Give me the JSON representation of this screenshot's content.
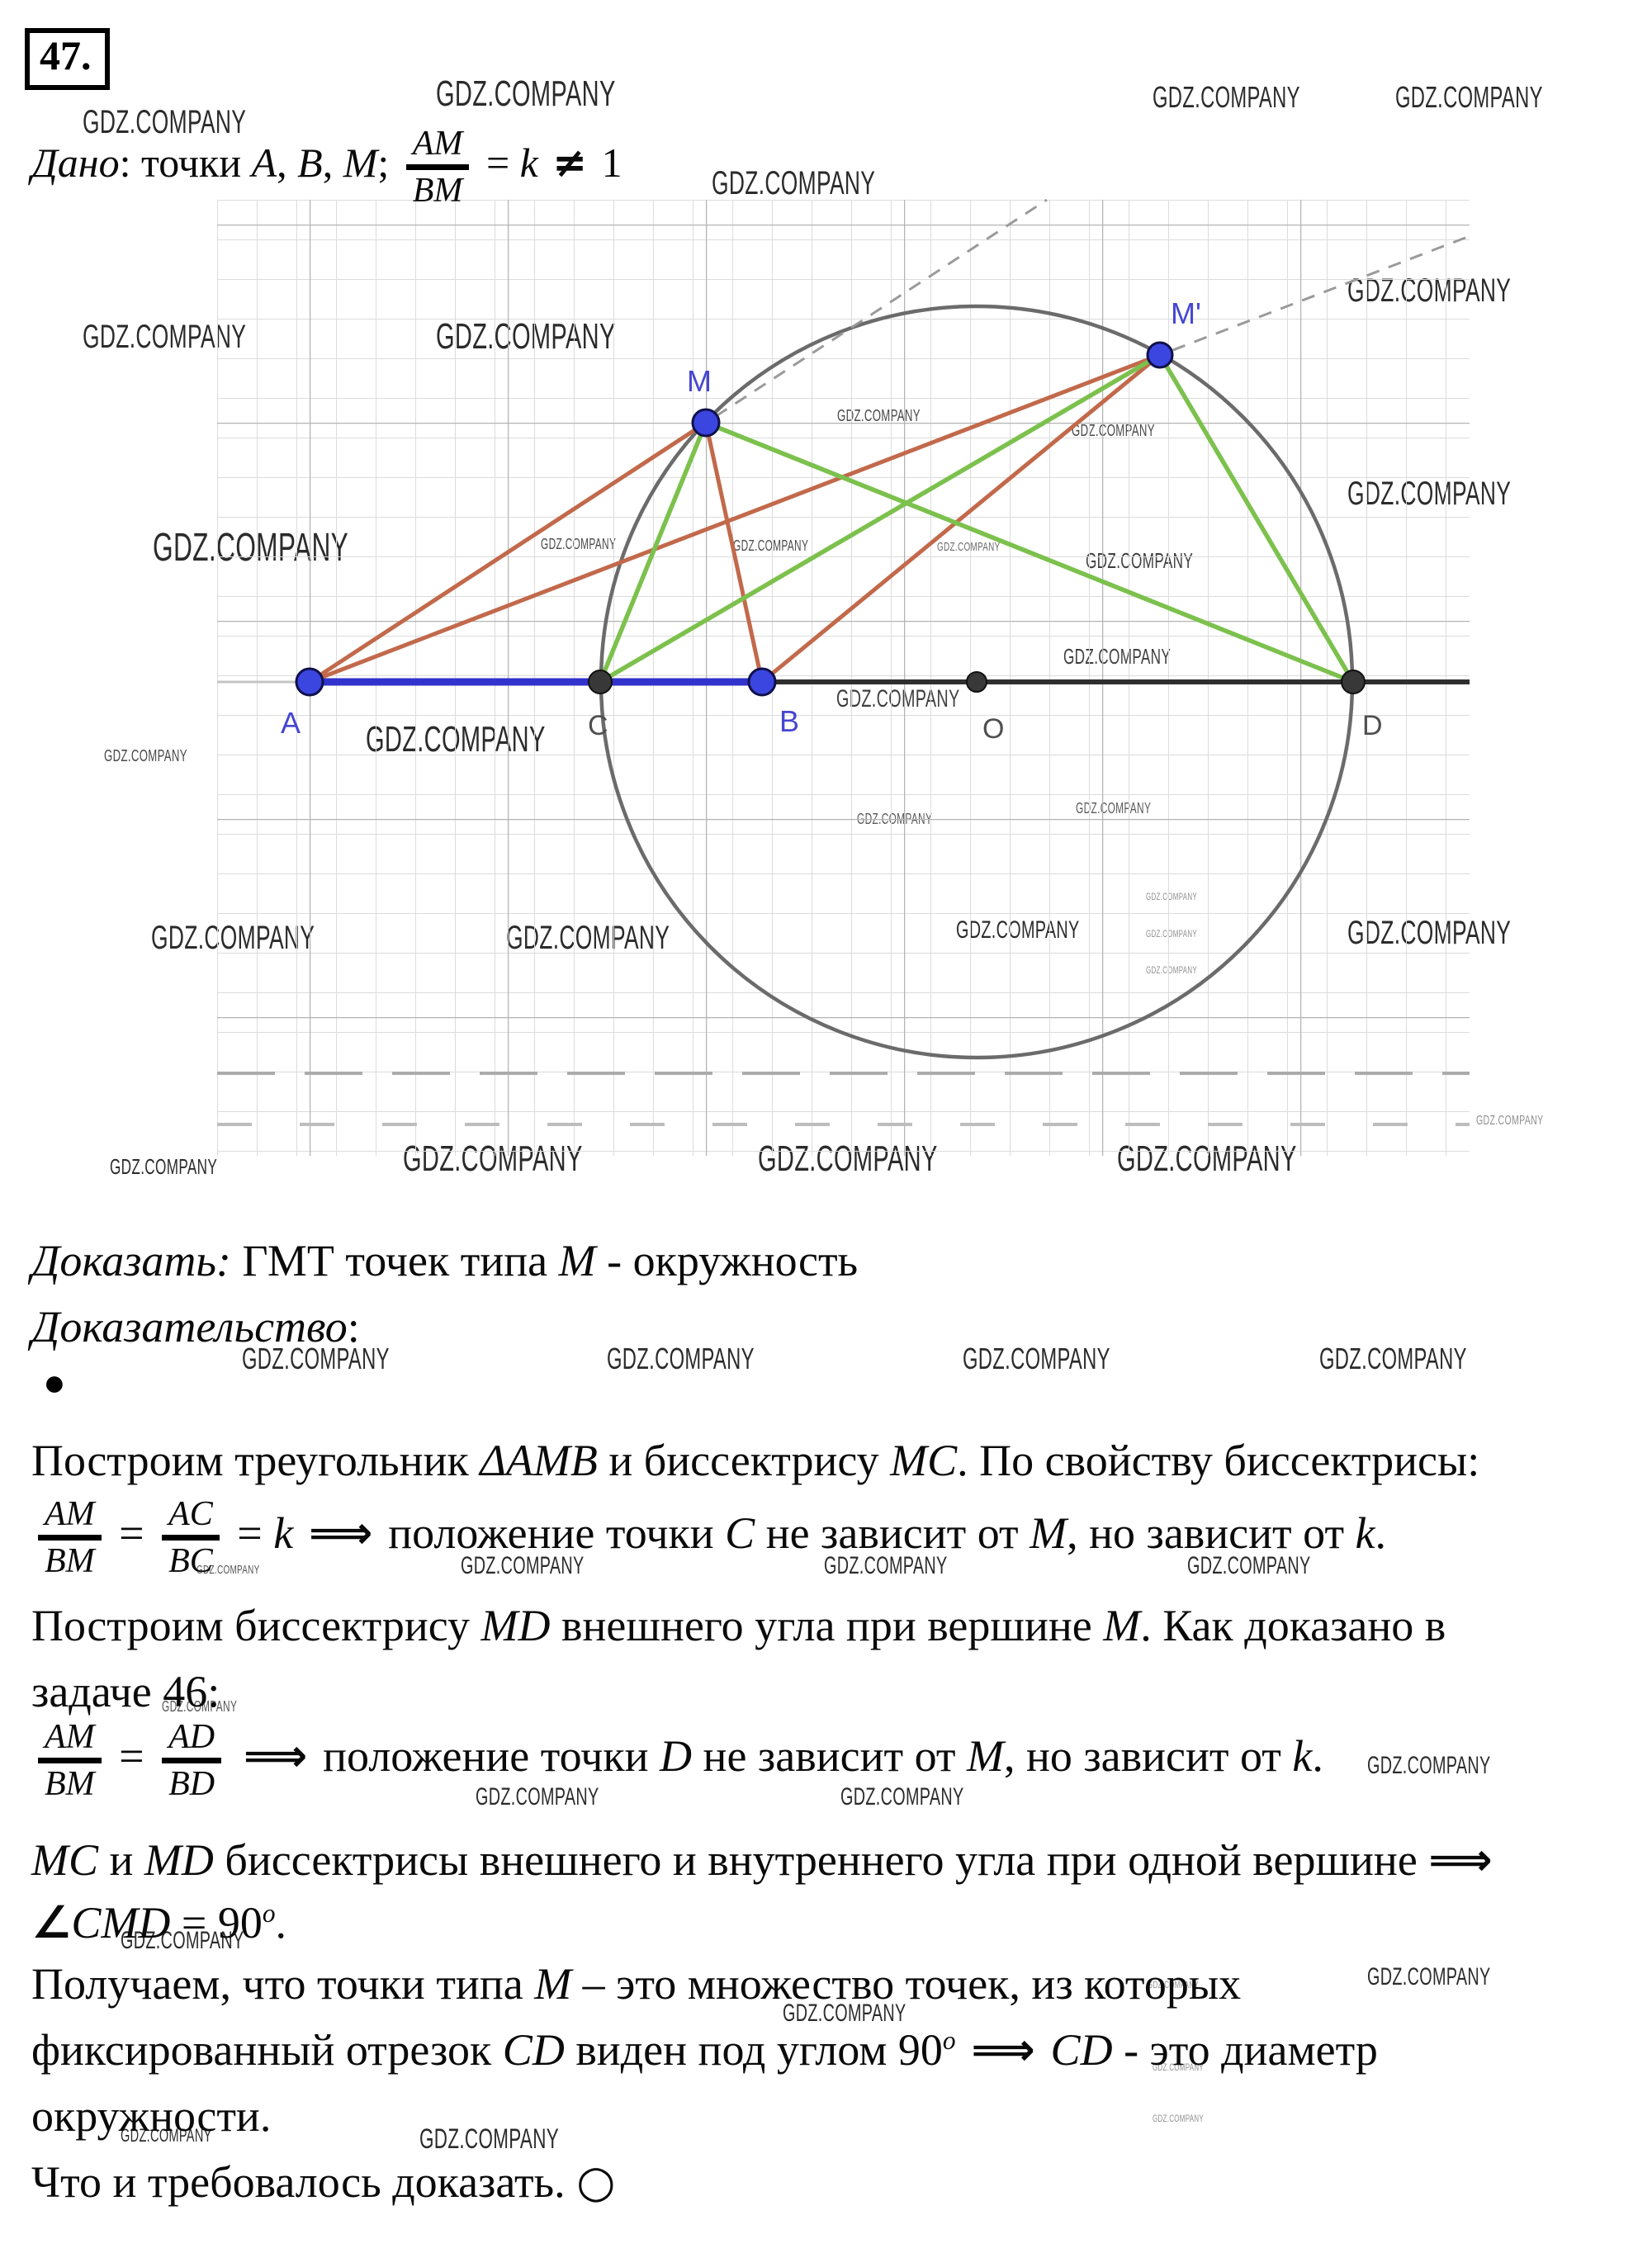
{
  "problem": {
    "number": "47."
  },
  "bullet": "●",
  "watermarks": {
    "text": "GDZ.COMPANY",
    "items": [
      [
        100,
        128,
        40
      ],
      [
        528,
        92,
        44
      ],
      [
        1396,
        100,
        36
      ],
      [
        1690,
        100,
        36
      ],
      [
        862,
        202,
        40
      ],
      [
        100,
        388,
        40
      ],
      [
        528,
        386,
        44
      ],
      [
        1632,
        332,
        40
      ],
      [
        185,
        640,
        48
      ],
      [
        1632,
        578,
        40
      ],
      [
        1014,
        494,
        20,
        "#4a4a4a"
      ],
      [
        1298,
        512,
        20,
        "#4a4a4a"
      ],
      [
        655,
        650,
        18,
        "#4a4a4a"
      ],
      [
        888,
        652,
        18,
        "#4a4a4a"
      ],
      [
        1135,
        655,
        15,
        "#6a6a6a"
      ],
      [
        1315,
        666,
        26,
        "#3f3f3f"
      ],
      [
        1288,
        782,
        26,
        "#3f3f3f"
      ],
      [
        1013,
        832,
        30,
        "#3f3f3f"
      ],
      [
        443,
        874,
        44
      ],
      [
        126,
        906,
        20,
        "#4a4a4a"
      ],
      [
        1038,
        983,
        18,
        "#5a5a5a"
      ],
      [
        1303,
        970,
        18,
        "#5a5a5a"
      ],
      [
        1388,
        1080,
        12,
        "#8f8f8f"
      ],
      [
        1388,
        1125,
        12,
        "#8f8f8f"
      ],
      [
        1388,
        1169,
        12,
        "#8f8f8f"
      ],
      [
        183,
        1116,
        40
      ],
      [
        613,
        1116,
        40
      ],
      [
        1158,
        1112,
        30
      ],
      [
        1632,
        1110,
        40
      ],
      [
        1788,
        1350,
        16,
        "#8f8f8f"
      ],
      [
        133,
        1400,
        26
      ],
      [
        488,
        1382,
        44
      ],
      [
        918,
        1382,
        44
      ],
      [
        1353,
        1382,
        44
      ],
      [
        293,
        1628,
        36
      ],
      [
        735,
        1628,
        36
      ],
      [
        1166,
        1628,
        36
      ],
      [
        1598,
        1628,
        36
      ],
      [
        238,
        1894,
        15,
        "#555555"
      ],
      [
        558,
        1882,
        30
      ],
      [
        998,
        1882,
        30
      ],
      [
        1438,
        1882,
        30
      ],
      [
        196,
        2058,
        18,
        "#555555"
      ],
      [
        1656,
        2124,
        30
      ],
      [
        576,
        2162,
        30
      ],
      [
        1018,
        2162,
        30
      ],
      [
        146,
        2336,
        30
      ],
      [
        1656,
        2380,
        30
      ],
      [
        1390,
        2398,
        12,
        "#8f8f8f"
      ],
      [
        948,
        2424,
        30
      ],
      [
        1396,
        2498,
        12,
        "#8f8f8f"
      ],
      [
        1396,
        2560,
        12,
        "#8f8f8f"
      ],
      [
        146,
        2576,
        22
      ],
      [
        508,
        2574,
        34
      ]
    ]
  },
  "diagram": {
    "point_labels": {
      "a": "A",
      "b": "B",
      "c": "C",
      "o": "O",
      "d": "D",
      "m": "M",
      "m_prime": "M'"
    },
    "colors": {
      "side_orange": "#c2694b",
      "bisector_green": "#7cc14d",
      "segment_blue": "#3232cd",
      "point_blue": "#3b45e0",
      "point_dark": "#383838",
      "circle_gray": "#6b6b6b",
      "axis_dark": "#2f2f2f",
      "dashed_gray": "#9a9a9a",
      "label_blue": "#4646d2",
      "label_gray": "#4f4f4f"
    }
  },
  "given": {
    "parts": [
      {
        "s": "i",
        "t": "Дано"
      },
      {
        "s": "r",
        "t": ": точки "
      },
      {
        "s": "i",
        "t": "A"
      },
      {
        "s": "r",
        "t": ", "
      },
      {
        "s": "i",
        "t": "B"
      },
      {
        "s": "r",
        "t": ", "
      },
      {
        "s": "i",
        "t": "M"
      },
      {
        "s": "r",
        "t": ";  "
      },
      {
        "s": "frac",
        "num": "AM",
        "den": "BM"
      },
      {
        "s": "r",
        "t": " = "
      },
      {
        "s": "i",
        "t": "k"
      },
      {
        "s": "sym",
        "t": " ≠ "
      },
      {
        "s": "r",
        "t": "1"
      }
    ]
  },
  "prove": {
    "parts": [
      {
        "s": "i",
        "t": "Доказать:"
      },
      {
        "s": "r",
        "t": " ГМТ точек типа "
      },
      {
        "s": "i",
        "t": "M"
      },
      {
        "s": "r",
        "t": " - окружность"
      }
    ]
  },
  "proof_label": {
    "parts": [
      {
        "s": "i",
        "t": "Доказательство"
      },
      {
        "s": "r",
        "t": ":"
      }
    ]
  },
  "steps": {
    "s1": {
      "parts": [
        {
          "s": "r",
          "t": "Построим треугольник "
        },
        {
          "s": "i",
          "t": "ΔAMB"
        },
        {
          "s": "r",
          "t": " и биссектрису "
        },
        {
          "s": "i",
          "t": "MC"
        },
        {
          "s": "r",
          "t": ". По свойству биссектрисы:"
        }
      ]
    },
    "s2": {
      "parts": [
        {
          "s": "frac",
          "num": "AM",
          "den": "BM"
        },
        {
          "s": "r",
          "t": " = "
        },
        {
          "s": "frac",
          "num": "AC",
          "den": "BC"
        },
        {
          "s": "r",
          "t": " = "
        },
        {
          "s": "i",
          "t": "k"
        },
        {
          "s": "sym",
          "t": " ⟹ "
        },
        {
          "s": "r",
          "t": "положение точки "
        },
        {
          "s": "i",
          "t": "C"
        },
        {
          "s": "r",
          "t": " не зависит от "
        },
        {
          "s": "i",
          "t": "M"
        },
        {
          "s": "r",
          "t": ", но зависит от "
        },
        {
          "s": "i",
          "t": "k"
        },
        {
          "s": "r",
          "t": "."
        }
      ]
    },
    "s3": {
      "parts": [
        {
          "s": "r",
          "t": "Построим биссектрису "
        },
        {
          "s": "i",
          "t": "MD"
        },
        {
          "s": "r",
          "t": " внешнего угла при вершине "
        },
        {
          "s": "i",
          "t": "M"
        },
        {
          "s": "r",
          "t": ". Как доказано в"
        }
      ]
    },
    "s3b": {
      "parts": [
        {
          "s": "r",
          "t": "задаче 46:"
        }
      ]
    },
    "s4": {
      "parts": [
        {
          "s": "frac",
          "num": "AM",
          "den": "BM"
        },
        {
          "s": "r",
          "t": " = "
        },
        {
          "s": "frac",
          "num": "AD",
          "den": "BD"
        },
        {
          "s": "sym",
          "t": " ⟹ "
        },
        {
          "s": "r",
          "t": "положение точки "
        },
        {
          "s": "i",
          "t": "D"
        },
        {
          "s": "r",
          "t": " не зависит от "
        },
        {
          "s": "i",
          "t": "M"
        },
        {
          "s": "r",
          "t": ", но зависит от "
        },
        {
          "s": "i",
          "t": "k"
        },
        {
          "s": "r",
          "t": "."
        }
      ]
    },
    "s5": {
      "parts": [
        {
          "s": "i",
          "t": "MC"
        },
        {
          "s": "r",
          "t": " и "
        },
        {
          "s": "i",
          "t": "MD"
        },
        {
          "s": "r",
          "t": " биссектрисы внешнего и внутреннего угла при одной вершине "
        },
        {
          "s": "sym",
          "t": "⟹"
        }
      ]
    },
    "s5b": {
      "parts": [
        {
          "s": "sym",
          "t": "∠"
        },
        {
          "s": "i",
          "t": "CMD"
        },
        {
          "s": "r",
          "t": " = 90"
        },
        {
          "s": "sup",
          "t": "o"
        },
        {
          "s": "r",
          "t": "."
        }
      ]
    },
    "s6": {
      "parts": [
        {
          "s": "r",
          "t": "Получаем, что точки типа "
        },
        {
          "s": "i",
          "t": "M"
        },
        {
          "s": "r",
          "t": " – это множество точек, из которых"
        }
      ]
    },
    "s6b": {
      "parts": [
        {
          "s": "r",
          "t": "фиксированный отрезок "
        },
        {
          "s": "i",
          "t": "CD"
        },
        {
          "s": "r",
          "t": " виден под углом 90"
        },
        {
          "s": "sup",
          "t": "o"
        },
        {
          "s": "sym",
          "t": " ⟹ "
        },
        {
          "s": "i",
          "t": "CD"
        },
        {
          "s": "r",
          "t": " - это диаметр"
        }
      ]
    },
    "s6c": {
      "parts": [
        {
          "s": "r",
          "t": "окружности."
        }
      ]
    },
    "qed": {
      "parts": [
        {
          "s": "r",
          "t": "Что и требовалось доказать. "
        },
        {
          "s": "sym",
          "t": "○"
        }
      ]
    }
  }
}
